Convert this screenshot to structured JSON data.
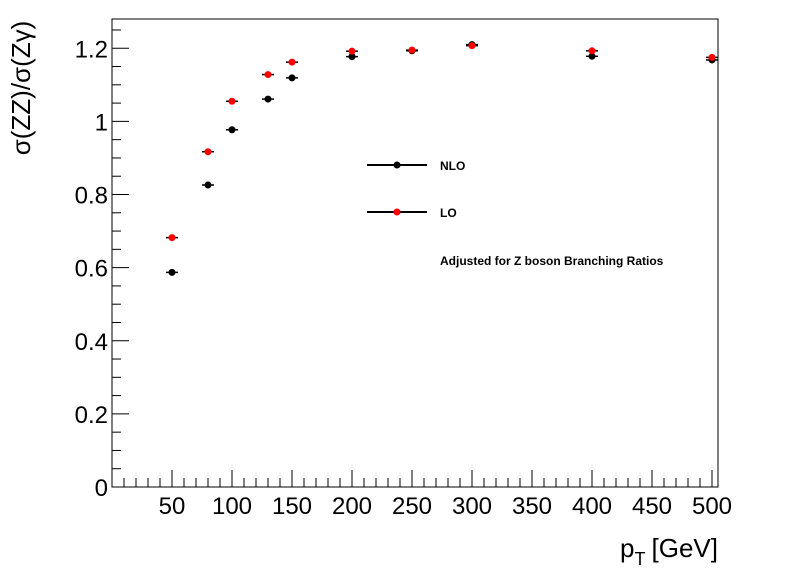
{
  "chart_data": {
    "type": "scatter",
    "title": "",
    "xlabel_main": "p",
    "xlabel_sub": "T",
    "xlabel_unit": "[GeV]",
    "ylabel": "σ(ZZ)/σ(Zγ)",
    "xlim": [
      0,
      505
    ],
    "ylim": [
      0,
      1.28
    ],
    "x_ticks": [
      50,
      100,
      150,
      200,
      250,
      300,
      350,
      400,
      450,
      500
    ],
    "y_ticks": [
      0,
      0.2,
      0.4,
      0.6,
      0.8,
      1,
      1.2
    ],
    "x_tick_labels": [
      "50",
      "100",
      "150",
      "200",
      "250",
      "300",
      "350",
      "400",
      "450",
      "500"
    ],
    "y_tick_labels": [
      "0",
      "0.2",
      "0.4",
      "0.6",
      "0.8",
      "1",
      "1.2"
    ],
    "grid": false,
    "legend_position": "center",
    "annotation": "Adjusted for Z boson Branching Ratios",
    "series": [
      {
        "name": "NLO",
        "color": "#000000",
        "x": [
          50,
          80,
          100,
          130,
          150,
          200,
          250,
          300,
          400,
          500
        ],
        "y": [
          0.587,
          0.826,
          0.977,
          1.061,
          1.119,
          1.177,
          1.193,
          1.21,
          1.178,
          1.168
        ]
      },
      {
        "name": "LO",
        "color": "#ff0000",
        "x": [
          50,
          80,
          100,
          130,
          150,
          200,
          250,
          300,
          400,
          500
        ],
        "y": [
          0.682,
          0.917,
          1.055,
          1.128,
          1.162,
          1.192,
          1.195,
          1.207,
          1.193,
          1.175
        ]
      }
    ]
  }
}
